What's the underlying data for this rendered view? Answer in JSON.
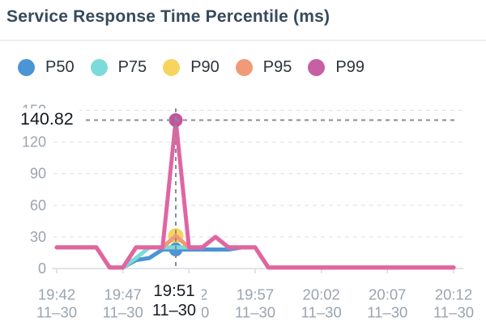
{
  "header": {
    "title": "Service Response Time Percentile (ms)"
  },
  "legend": {
    "items": [
      {
        "label": "P50"
      },
      {
        "label": "P75"
      },
      {
        "label": "P90"
      },
      {
        "label": "P95"
      },
      {
        "label": "P99"
      }
    ]
  },
  "chart_data": {
    "type": "line",
    "title": "Service Response Time Percentile (ms)",
    "unit": "ms",
    "grid": true,
    "legend_position": "top",
    "ylim": [
      0,
      150
    ],
    "y_ticks": [
      0,
      30,
      60,
      90,
      120,
      150
    ],
    "y_tick_labels": [
      "0",
      "30",
      "60",
      "90",
      "120",
      "150"
    ],
    "x": [
      "19:42",
      "19:43",
      "19:44",
      "19:45",
      "19:46",
      "19:47",
      "19:48",
      "19:49",
      "19:50",
      "19:51",
      "19:52",
      "19:53",
      "19:54",
      "19:55",
      "19:56",
      "19:57",
      "19:58",
      "19:59",
      "20:00",
      "20:01",
      "20:02",
      "20:03",
      "20:04",
      "20:05",
      "20:06",
      "20:07",
      "20:08",
      "20:09",
      "20:10",
      "20:11",
      "20:12"
    ],
    "x_tick_labels": [
      {
        "time": "19:42",
        "date": "11–30"
      },
      {
        "time": "19:47",
        "date": "11–30"
      },
      {
        "time": "19:52",
        "date": "11–30"
      },
      {
        "time": "19:57",
        "date": "11–30"
      },
      {
        "time": "20:02",
        "date": "11–30"
      },
      {
        "time": "20:07",
        "date": "11–30"
      },
      {
        "time": "20:12",
        "date": "11–30"
      }
    ],
    "series": [
      {
        "name": "P50",
        "color": "#4b94d6",
        "values": [
          20,
          20,
          20,
          20,
          1,
          1,
          8,
          10,
          18,
          18,
          18,
          18,
          18,
          18,
          20,
          20,
          1,
          1,
          1,
          1,
          1,
          1,
          1,
          1,
          1,
          1,
          1,
          1,
          1,
          1,
          1
        ]
      },
      {
        "name": "P75",
        "color": "#7cdbd9",
        "values": [
          20,
          20,
          20,
          20,
          1,
          1,
          10,
          20,
          20,
          20,
          20,
          20,
          30,
          20,
          20,
          20,
          1,
          1,
          1,
          1,
          1,
          1,
          1,
          1,
          1,
          1,
          1,
          1,
          1,
          1,
          1
        ]
      },
      {
        "name": "P90",
        "color": "#f6d45f",
        "values": [
          20,
          20,
          20,
          20,
          1,
          1,
          20,
          20,
          20,
          31,
          20,
          20,
          30,
          20,
          20,
          20,
          1,
          1,
          1,
          1,
          1,
          1,
          1,
          1,
          1,
          1,
          1,
          1,
          1,
          1,
          1
        ]
      },
      {
        "name": "P95",
        "color": "#f09a77",
        "values": [
          20,
          20,
          20,
          20,
          1,
          1,
          20,
          20,
          20,
          31,
          20,
          20,
          30,
          20,
          20,
          20,
          1,
          1,
          1,
          1,
          1,
          1,
          1,
          1,
          1,
          1,
          1,
          1,
          1,
          1,
          1
        ]
      },
      {
        "name": "P99",
        "color": "#e065a2",
        "legend_color": "#c75fa5",
        "values": [
          20,
          20,
          20,
          20,
          1,
          1,
          20,
          20,
          20,
          140.82,
          20,
          20,
          30,
          20,
          20,
          20,
          1,
          1,
          1,
          1,
          1,
          1,
          1,
          1,
          1,
          1,
          1,
          1,
          1,
          1,
          1
        ]
      }
    ],
    "marked_points": [
      {
        "series": "P90",
        "time": "19:51",
        "value": 31
      },
      {
        "series": "P50",
        "time": "19:51",
        "value": 18
      }
    ],
    "selected_point": {
      "series": "P99",
      "time": "19:51",
      "date": "11–30",
      "value": 140.82,
      "value_label": "140.82",
      "dot_color": "#c2549e"
    }
  }
}
